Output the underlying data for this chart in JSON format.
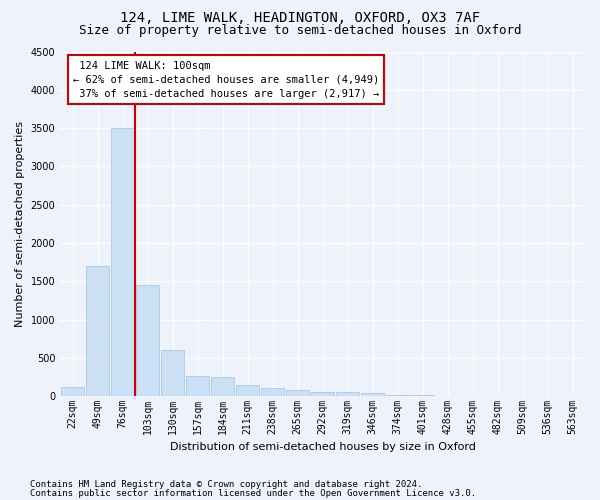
{
  "title_line1": "124, LIME WALK, HEADINGTON, OXFORD, OX3 7AF",
  "title_line2": "Size of property relative to semi-detached houses in Oxford",
  "xlabel": "Distribution of semi-detached houses by size in Oxford",
  "ylabel": "Number of semi-detached properties",
  "footnote1": "Contains HM Land Registry data © Crown copyright and database right 2024.",
  "footnote2": "Contains public sector information licensed under the Open Government Licence v3.0.",
  "categories": [
    "22sqm",
    "49sqm",
    "76sqm",
    "103sqm",
    "130sqm",
    "157sqm",
    "184sqm",
    "211sqm",
    "238sqm",
    "265sqm",
    "292sqm",
    "319sqm",
    "346sqm",
    "374sqm",
    "401sqm",
    "428sqm",
    "455sqm",
    "482sqm",
    "509sqm",
    "536sqm",
    "563sqm"
  ],
  "values": [
    120,
    1700,
    3500,
    1450,
    600,
    260,
    250,
    140,
    100,
    80,
    60,
    50,
    45,
    20,
    10,
    8,
    5,
    4,
    3,
    2,
    2
  ],
  "bar_color": "#cce0f5",
  "bar_edge_color": "#aac8e8",
  "property_line_index": 2.5,
  "property_label": "124 LIME WALK: 100sqm",
  "smaller_pct": "62%",
  "smaller_n": "4,949",
  "larger_pct": "37%",
  "larger_n": "2,917",
  "annotation_box_color": "#ffffff",
  "annotation_box_edge": "#cc0000",
  "line_color": "#cc0000",
  "ylim": [
    0,
    4500
  ],
  "yticks": [
    0,
    500,
    1000,
    1500,
    2000,
    2500,
    3000,
    3500,
    4000,
    4500
  ],
  "bg_color": "#eef2fb",
  "grid_color": "#ffffff",
  "title_fontsize": 10,
  "subtitle_fontsize": 9,
  "axis_label_fontsize": 8,
  "tick_fontsize": 7,
  "annotation_fontsize": 7.5
}
